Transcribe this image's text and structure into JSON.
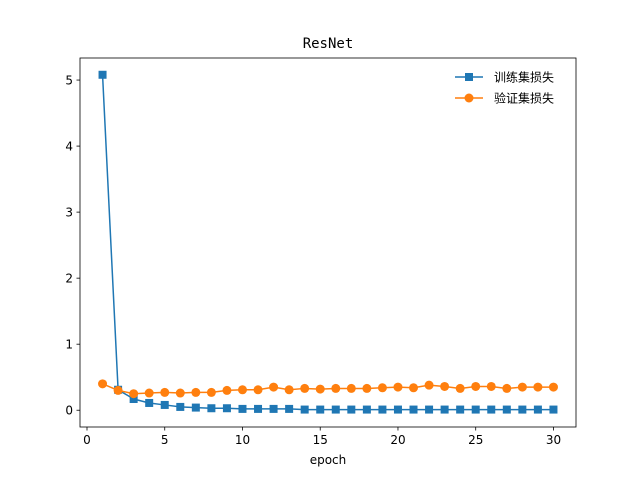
{
  "chart_data": {
    "type": "line",
    "title": "ResNet",
    "xlabel": "epoch",
    "ylabel": "",
    "xlim": [
      -0.45,
      31.45
    ],
    "ylim": [
      -0.254,
      5.334
    ],
    "x_ticks": [
      0,
      5,
      10,
      15,
      20,
      25,
      30
    ],
    "y_ticks": [
      0,
      1,
      2,
      3,
      4,
      5
    ],
    "legend_position": "top-right",
    "grid": false,
    "x": [
      1,
      2,
      3,
      4,
      5,
      6,
      7,
      8,
      9,
      10,
      11,
      12,
      13,
      14,
      15,
      16,
      17,
      18,
      19,
      20,
      21,
      22,
      23,
      24,
      25,
      26,
      27,
      28,
      29,
      30
    ],
    "series": [
      {
        "name": "训练集损失",
        "color": "#1f77b4",
        "marker": "square",
        "values": [
          5.08,
          0.31,
          0.17,
          0.11,
          0.08,
          0.05,
          0.04,
          0.03,
          0.03,
          0.02,
          0.02,
          0.02,
          0.02,
          0.01,
          0.01,
          0.01,
          0.01,
          0.01,
          0.01,
          0.01,
          0.01,
          0.01,
          0.01,
          0.01,
          0.01,
          0.01,
          0.01,
          0.01,
          0.01,
          0.01
        ]
      },
      {
        "name": "验证集损失",
        "color": "#ff7f0e",
        "marker": "circle",
        "values": [
          0.4,
          0.3,
          0.25,
          0.26,
          0.27,
          0.26,
          0.27,
          0.27,
          0.3,
          0.31,
          0.31,
          0.35,
          0.31,
          0.33,
          0.32,
          0.33,
          0.33,
          0.33,
          0.34,
          0.35,
          0.34,
          0.38,
          0.36,
          0.33,
          0.36,
          0.36,
          0.33,
          0.35,
          0.35,
          0.35
        ]
      }
    ]
  }
}
